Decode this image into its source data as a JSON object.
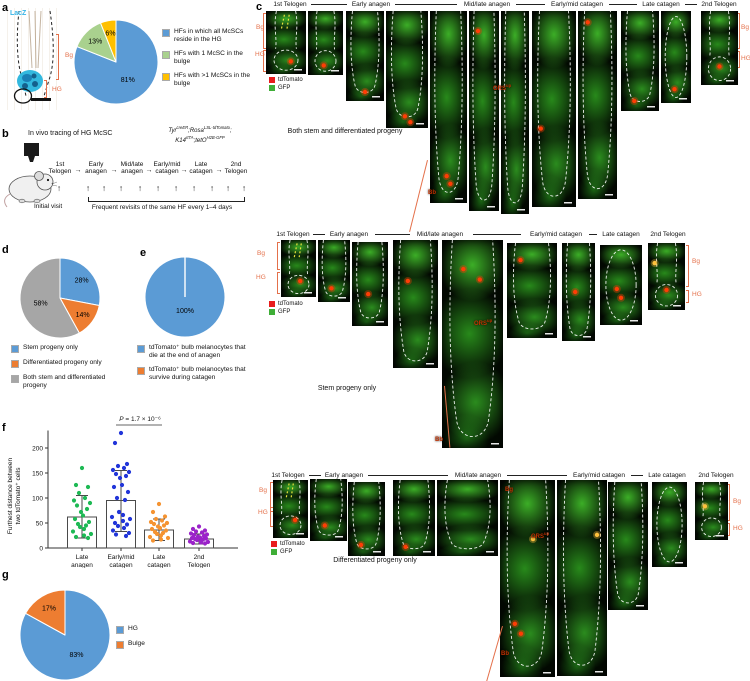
{
  "panels": {
    "a": {
      "label": "a",
      "stain_tag": "LacZ",
      "bulge_label": "Bg",
      "germ_label": "HG",
      "legend": [
        {
          "color": "#5B9BD5",
          "text": "HFs in which all McSCs reside in the HG"
        },
        {
          "color": "#A9D18E",
          "text": "HFs with 1 McSC in the bulge"
        },
        {
          "color": "#FFC000",
          "text": "HFs with >1 McSCs in the bulge"
        }
      ]
    },
    "b": {
      "label": "b",
      "title": "In vivo tracing of HG McSC",
      "genotype_line1": [
        [
          "Tyr",
          "i"
        ],
        [
          "creER",
          "s"
        ],
        [
          ";Rosa",
          "i"
        ],
        [
          "LSL-tdTomato",
          "s"
        ],
        [
          ";",
          "i"
        ]
      ],
      "genotype_line2": [
        [
          "K14",
          "i"
        ],
        [
          "rtTA",
          "s"
        ],
        [
          ";tetO",
          "i"
        ],
        [
          "H2B-GFP",
          "s"
        ]
      ],
      "stages": [
        "1st Telogen",
        "Early anagen",
        "Mid/late anagen",
        "Early/mid catagen",
        "Late catagen",
        "2nd Telogen"
      ],
      "initial_visit": "Initial visit",
      "revisits": "Frequent revisits of the same HF every 1–4 days"
    },
    "c": {
      "label": "c",
      "stage_headers": [
        "1st Telogen",
        "Early anagen",
        "Mid/late anagen",
        "Early/mid catagen",
        "Late catagen",
        "2nd Telogen"
      ],
      "marker_legend": [
        {
          "color": "#e81c1c",
          "text": "tdTomato"
        },
        {
          "color": "#3fae37",
          "text": "GFP"
        }
      ],
      "labels": {
        "bg": "Bg",
        "hg": "HG",
        "bb": "Bb",
        "ors_base": "ORS",
        "ors_sup": "up"
      },
      "groups": [
        {
          "caption": "Both stem and differentiated progeny"
        },
        {
          "caption": "Stem progeny only"
        },
        {
          "caption": "Differentiated progeny only"
        }
      ]
    },
    "d": {
      "label": "d",
      "legend": [
        {
          "color": "#5B9BD5",
          "text": "Stem progeny only"
        },
        {
          "color": "#ED7D31",
          "text": "Differentiated progeny only"
        },
        {
          "color": "#A6A6A6",
          "text": "Both stem and differentiated progeny"
        }
      ]
    },
    "e": {
      "label": "e",
      "legend": [
        {
          "color": "#5B9BD5",
          "text": "tdTomato⁺ bulb melanocytes that die at the end of anagen"
        },
        {
          "color": "#ED7D31",
          "text": "tdTomato⁺ bulb melanocytes that survive during catagen"
        }
      ]
    },
    "f": {
      "label": "f",
      "p_label": "P = 1.7 × 10⁻⁶",
      "ylabel": [
        "Furthest distance between",
        "two tdTomato⁺ cells"
      ]
    },
    "g": {
      "label": "g",
      "legend": [
        {
          "color": "#5B9BD5",
          "text": "HG"
        },
        {
          "color": "#ED7D31",
          "text": "Bulge"
        }
      ]
    }
  },
  "chart_data": [
    {
      "id": "pie_a",
      "type": "pie",
      "values": [
        81,
        13,
        6
      ],
      "value_labels": [
        "81%",
        "13%",
        "6%"
      ],
      "labels": [
        "HFs in which all McSCs reside in the HG",
        "HFs with 1 McSC in the bulge",
        "HFs with >1 McSCs in the bulge"
      ],
      "colors": [
        "#5B9BD5",
        "#A9D18E",
        "#FFC000"
      ]
    },
    {
      "id": "pie_d",
      "type": "pie",
      "values": [
        28,
        14,
        58
      ],
      "value_labels": [
        "28%",
        "14%",
        "58%"
      ],
      "labels": [
        "Stem progeny only",
        "Differentiated progeny only",
        "Both stem and differentiated progeny"
      ],
      "colors": [
        "#5B9BD5",
        "#ED7D31",
        "#A6A6A6"
      ]
    },
    {
      "id": "pie_e",
      "type": "pie",
      "values": [
        100,
        0
      ],
      "value_labels": [
        "100%",
        ""
      ],
      "labels": [
        "tdTomato⁺ bulb melanocytes that die at the end of anagen",
        "tdTomato⁺ bulb melanocytes that survive during catagen"
      ],
      "colors": [
        "#5B9BD5",
        "#ED7D31"
      ]
    },
    {
      "id": "pie_g",
      "type": "pie",
      "values": [
        83,
        17
      ],
      "value_labels": [
        "83%",
        "17%"
      ],
      "labels": [
        "HG",
        "Bulge"
      ],
      "colors": [
        "#5B9BD5",
        "#ED7D31"
      ]
    },
    {
      "id": "bar_f",
      "type": "bar",
      "categories": [
        "Late anagen",
        "Early/mid catagen",
        "Late catagen",
        "2nd Telogen"
      ],
      "ylabel": "Furthest distance between two tdTomato⁺ cells",
      "yticks": [
        0,
        50,
        100,
        150,
        200
      ],
      "ylim": [
        0,
        240
      ],
      "p_annotation": {
        "text": "P = 1.7 × 10⁻⁶",
        "groups": [
          "Early/mid catagen",
          "Late catagen"
        ]
      },
      "series": [
        {
          "name": "Late anagen",
          "color": "#1db954",
          "bar_mean": 62,
          "whisker_low": 20,
          "whisker_high": 105,
          "points": [
            160,
            126,
            122,
            110,
            100,
            95,
            90,
            85,
            78,
            72,
            65,
            58,
            52,
            48,
            45,
            42,
            38,
            33,
            28,
            25,
            22,
            20
          ]
        },
        {
          "name": "Early/mid catagen",
          "color": "#2135d9",
          "bar_mean": 95,
          "whisker_low": 33,
          "whisker_high": 155,
          "points": [
            230,
            210,
            168,
            164,
            160,
            156,
            152,
            148,
            144,
            140,
            126,
            122,
            112,
            100,
            96,
            72,
            66,
            62,
            58,
            54,
            50,
            47,
            44,
            40,
            35,
            30,
            27,
            24
          ]
        },
        {
          "name": "Late catagen",
          "color": "#F59331",
          "bar_mean": 36,
          "whisker_low": 15,
          "whisker_high": 58,
          "points": [
            88,
            72,
            63,
            58,
            55,
            52,
            50,
            48,
            45,
            43,
            40,
            38,
            35,
            32,
            30,
            28,
            25,
            22,
            20,
            17,
            15
          ]
        },
        {
          "name": "2nd Telogen",
          "color": "#9b23c9",
          "bar_mean": 18,
          "whisker_low": 8,
          "whisker_high": 28,
          "points": [
            43,
            38,
            35,
            33,
            31,
            29,
            27,
            26,
            24,
            23,
            21,
            20,
            19,
            18,
            17,
            16,
            14,
            13,
            12,
            11,
            10,
            9
          ]
        }
      ]
    }
  ]
}
